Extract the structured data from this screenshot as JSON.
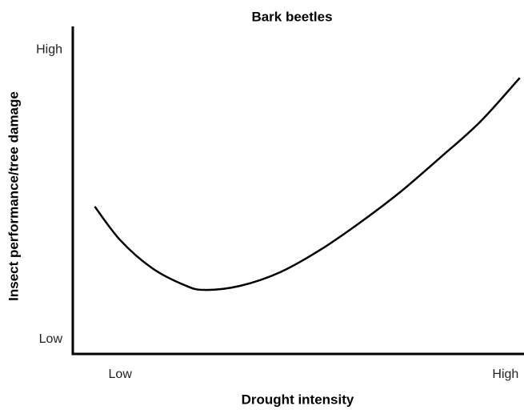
{
  "chart_data": {
    "type": "line",
    "title": "Bark beetles",
    "xlabel": "Drought intensity",
    "ylabel": "Insect performance/tree damage",
    "x": [
      -0.66,
      0,
      0.83,
      1.66,
      2.18,
      3.11,
      4.15,
      5.19,
      6.22,
      7.26,
      8.3,
      9.34,
      10.37
    ],
    "series": [
      {
        "name": "Bark beetles",
        "color": "#000000",
        "values": [
          4.59,
          3.43,
          2.46,
          1.88,
          1.71,
          1.85,
          2.32,
          3.09,
          4.03,
          5.08,
          6.27,
          7.51,
          9.03
        ]
      }
    ],
    "xlim": [
      -1.25,
      10.48
    ],
    "ylim": [
      -0.5,
      10.75
    ],
    "xticks": [
      {
        "value": 0,
        "label": "Low"
      },
      {
        "value": 10,
        "label": "High"
      }
    ],
    "yticks": [
      {
        "value": 0,
        "label": "Low"
      },
      {
        "value": 10,
        "label": "High"
      }
    ],
    "grid": false
  }
}
